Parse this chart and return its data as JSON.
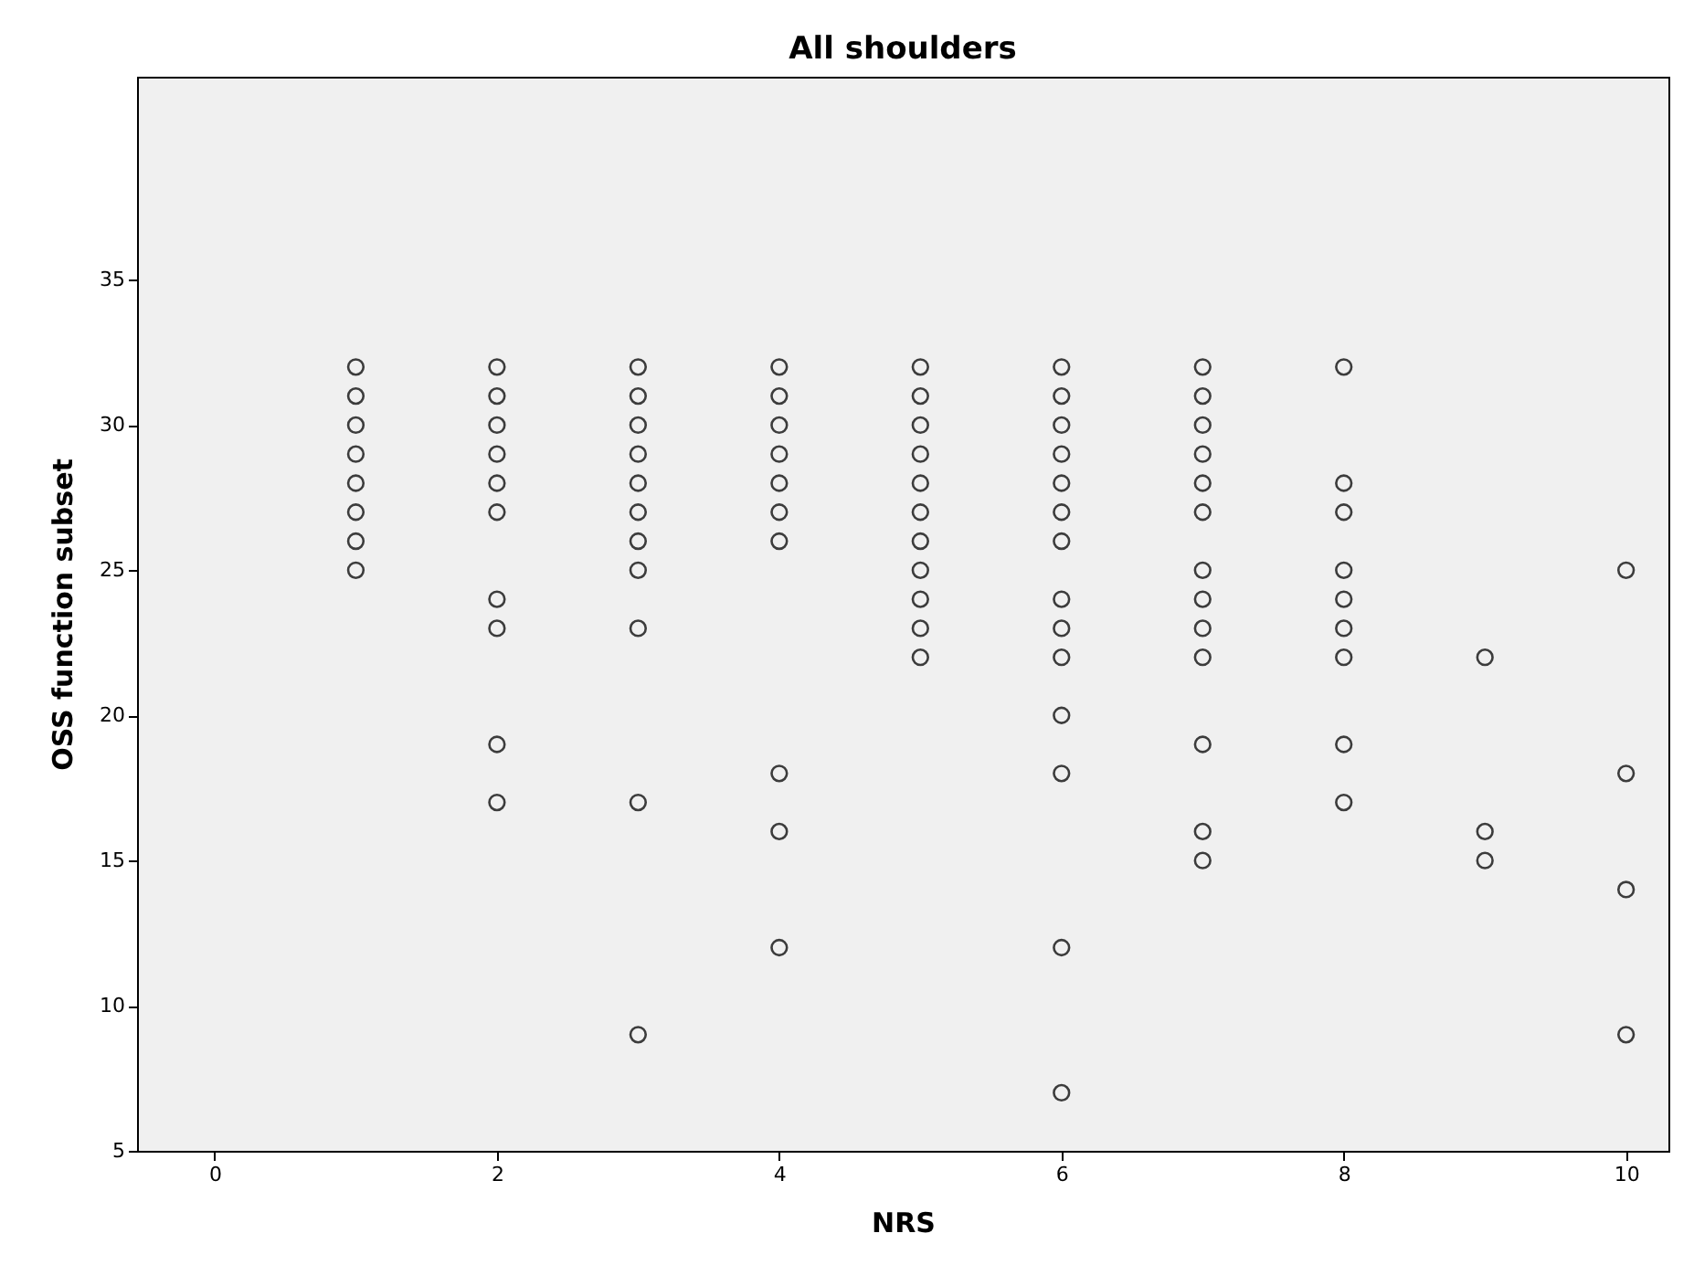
{
  "chart_data": {
    "type": "scatter",
    "title": "All shoulders",
    "xlabel": "NRS",
    "ylabel": "OSS function subset",
    "marker": "circle",
    "grid": false,
    "xlim": [
      -0.55,
      10.3
    ],
    "xticks": [
      0,
      2,
      4,
      6,
      8,
      10
    ],
    "ylim": [
      5,
      42
    ],
    "yticks": [
      5,
      10,
      15,
      20,
      25,
      30,
      35
    ],
    "series": [
      {
        "color": "#000000",
        "x": [
          1,
          1,
          1,
          1,
          1,
          1,
          1,
          1,
          2,
          2,
          2,
          2,
          2,
          2,
          2,
          2,
          2,
          2,
          3,
          3,
          3,
          3,
          3,
          3,
          3,
          3,
          3,
          3,
          3,
          4,
          4,
          4,
          4,
          4,
          4,
          4,
          4,
          4,
          4,
          5,
          5,
          5,
          5,
          5,
          5,
          5,
          5,
          5,
          5,
          5,
          6,
          6,
          6,
          6,
          6,
          6,
          6,
          6,
          6,
          6,
          6,
          6,
          6,
          6,
          7,
          7,
          7,
          7,
          7,
          7,
          7,
          7,
          7,
          7,
          7,
          7,
          7,
          8,
          8,
          8,
          8,
          8,
          8,
          8,
          8,
          8,
          9,
          9,
          9,
          10,
          10,
          10,
          10
        ],
        "values": [
          32,
          31,
          30,
          29,
          28,
          27,
          26,
          25,
          32,
          31,
          30,
          29,
          28,
          27,
          24,
          23,
          19,
          17,
          32,
          31,
          30,
          29,
          28,
          27,
          26,
          25,
          23,
          17,
          9,
          32,
          31,
          30,
          29,
          28,
          27,
          26,
          18,
          16,
          12,
          32,
          31,
          30,
          29,
          28,
          27,
          26,
          25,
          24,
          23,
          22,
          32,
          31,
          30,
          29,
          28,
          27,
          26,
          24,
          23,
          22,
          20,
          18,
          12,
          7,
          32,
          31,
          30,
          29,
          28,
          27,
          25,
          24,
          23,
          22,
          19,
          16,
          15,
          32,
          28,
          27,
          25,
          24,
          23,
          22,
          19,
          17,
          22,
          16,
          15,
          25,
          18,
          14,
          9
        ]
      }
    ]
  }
}
